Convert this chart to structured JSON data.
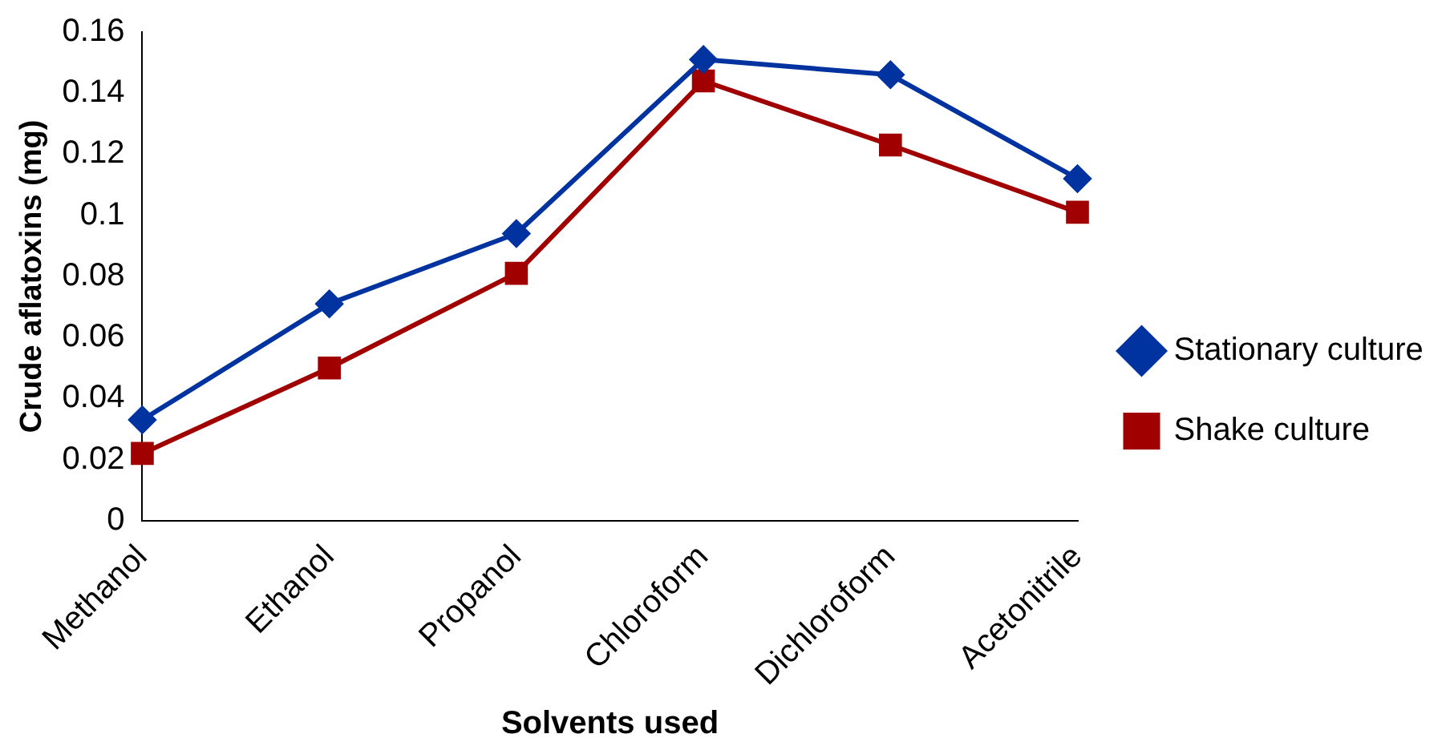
{
  "chart_data": {
    "type": "line",
    "xlabel": "Solvents used",
    "ylabel": "Crude aflatoxins (mg)",
    "categories": [
      "Methanol",
      "Ethanol",
      "Propanol",
      "Chloroform",
      "Dichloroform",
      "Acetonitrile"
    ],
    "series": [
      {
        "name": "Stationary culture",
        "color": "#0033a0",
        "marker": "diamond",
        "values": [
          0.033,
          0.071,
          0.094,
          0.151,
          0.146,
          0.112
        ]
      },
      {
        "name": "Shake culture",
        "color": "#a00000",
        "marker": "square",
        "values": [
          0.022,
          0.05,
          0.081,
          0.144,
          0.123,
          0.101
        ]
      }
    ],
    "ylim": [
      0,
      0.16
    ],
    "yticks": [
      0,
      0.02,
      0.04,
      0.06,
      0.08,
      0.1,
      0.12,
      0.14,
      0.16
    ],
    "grid": false,
    "legend": "right",
    "line_style": "solid"
  }
}
